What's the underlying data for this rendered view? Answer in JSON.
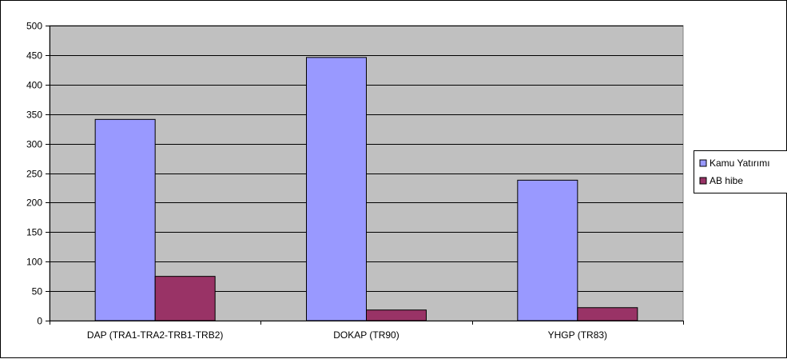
{
  "chart_data": {
    "type": "bar",
    "categories": [
      "DAP (TRA1-TRA2-TRB1-TRB2)",
      "DOKAP (TR90)",
      "YHGP (TR83)"
    ],
    "series": [
      {
        "name": "Kamu Yatırımı",
        "values": [
          341,
          446,
          238
        ],
        "color": "#9999FF"
      },
      {
        "name": "AB hibe",
        "values": [
          75,
          18,
          22
        ],
        "color": "#993366"
      }
    ],
    "ylim": [
      0,
      500
    ],
    "yticks": [
      0,
      50,
      100,
      150,
      200,
      250,
      300,
      350,
      400,
      450,
      500
    ],
    "grid": true,
    "legend": "right",
    "plot_background": "#C0C0C0",
    "title": "",
    "xlabel": "",
    "ylabel": ""
  }
}
